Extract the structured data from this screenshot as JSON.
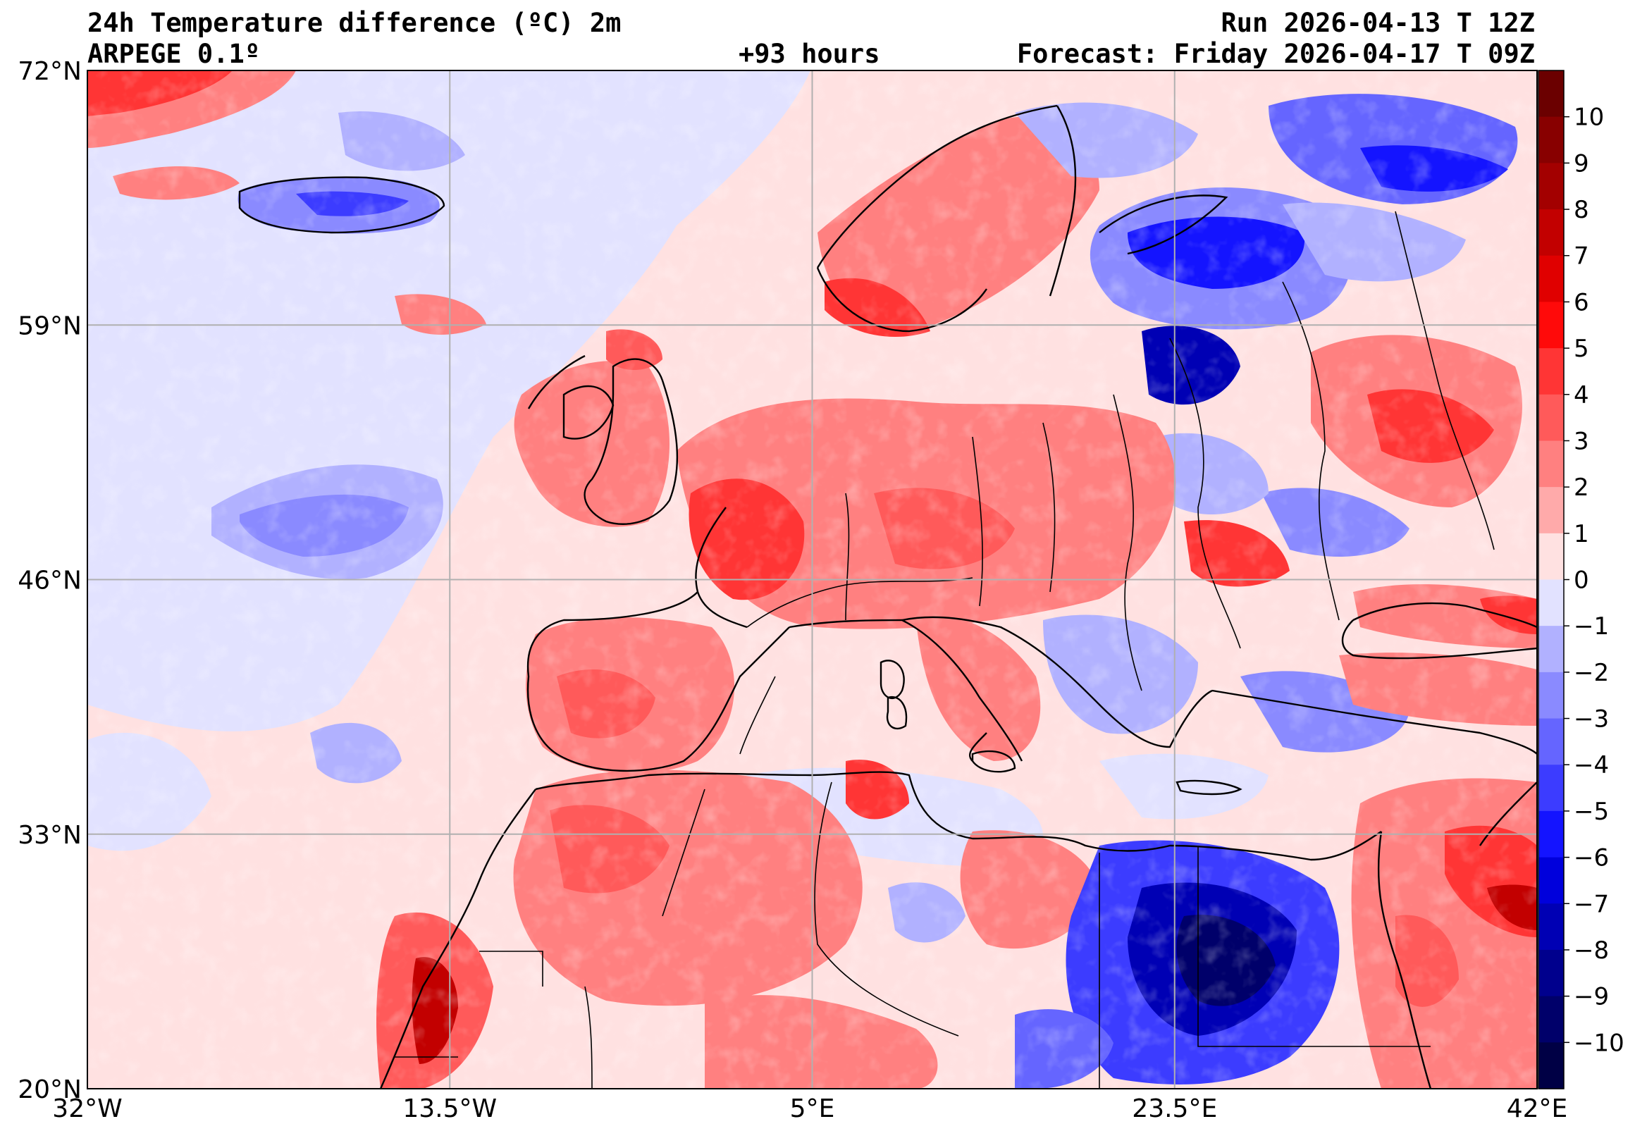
{
  "header": {
    "title_line1": "24h Temperature difference (ºC) 2m",
    "title_line2": "ARPEGE 0.1º",
    "lead_time": "+93 hours",
    "run": "Run 2026-04-13 T 12Z",
    "forecast": "Forecast: Friday 2026-04-17 T 09Z"
  },
  "map": {
    "extent": {
      "lon": [
        -32,
        42
      ],
      "lat": [
        20,
        72
      ]
    },
    "lat_ticks": [
      {
        "value": 72,
        "label": "72°N"
      },
      {
        "value": 59,
        "label": "59°N"
      },
      {
        "value": 46,
        "label": "46°N"
      },
      {
        "value": 33,
        "label": "33°N"
      },
      {
        "value": 20,
        "label": "20°N"
      }
    ],
    "lon_ticks": [
      {
        "value": -32,
        "label": "32°W"
      },
      {
        "value": -13.5,
        "label": "13.5°W"
      },
      {
        "value": 5,
        "label": "5°E"
      },
      {
        "value": 23.5,
        "label": "23.5°E"
      },
      {
        "value": 42,
        "label": "42°E"
      }
    ],
    "grid": true
  },
  "colorbar": {
    "levels": [
      10,
      9,
      8,
      7,
      6,
      5,
      4,
      3,
      2,
      1,
      0,
      -1,
      -2,
      -3,
      -4,
      -5,
      -6,
      -7,
      -8,
      -9,
      -10
    ],
    "labels": [
      "10",
      "9",
      "8",
      "7",
      "6",
      "5",
      "4",
      "3",
      "2",
      "1",
      "0",
      "−1",
      "−2",
      "−3",
      "−4",
      "−5",
      "−6",
      "−7",
      "−8",
      "−9",
      "−10"
    ],
    "colors": [
      "#6b0000",
      "#880000",
      "#a30000",
      "#c20000",
      "#e00000",
      "#ff0a0a",
      "#ff3535",
      "#ff5a5a",
      "#ff8080",
      "#ffaaaa",
      "#ffe1e1",
      "#e2e2ff",
      "#b1b1ff",
      "#8a8aff",
      "#6565ff",
      "#3c3cff",
      "#1414ff",
      "#0000dc",
      "#0000b4",
      "#00008d",
      "#00006a",
      "#000045"
    ]
  }
}
